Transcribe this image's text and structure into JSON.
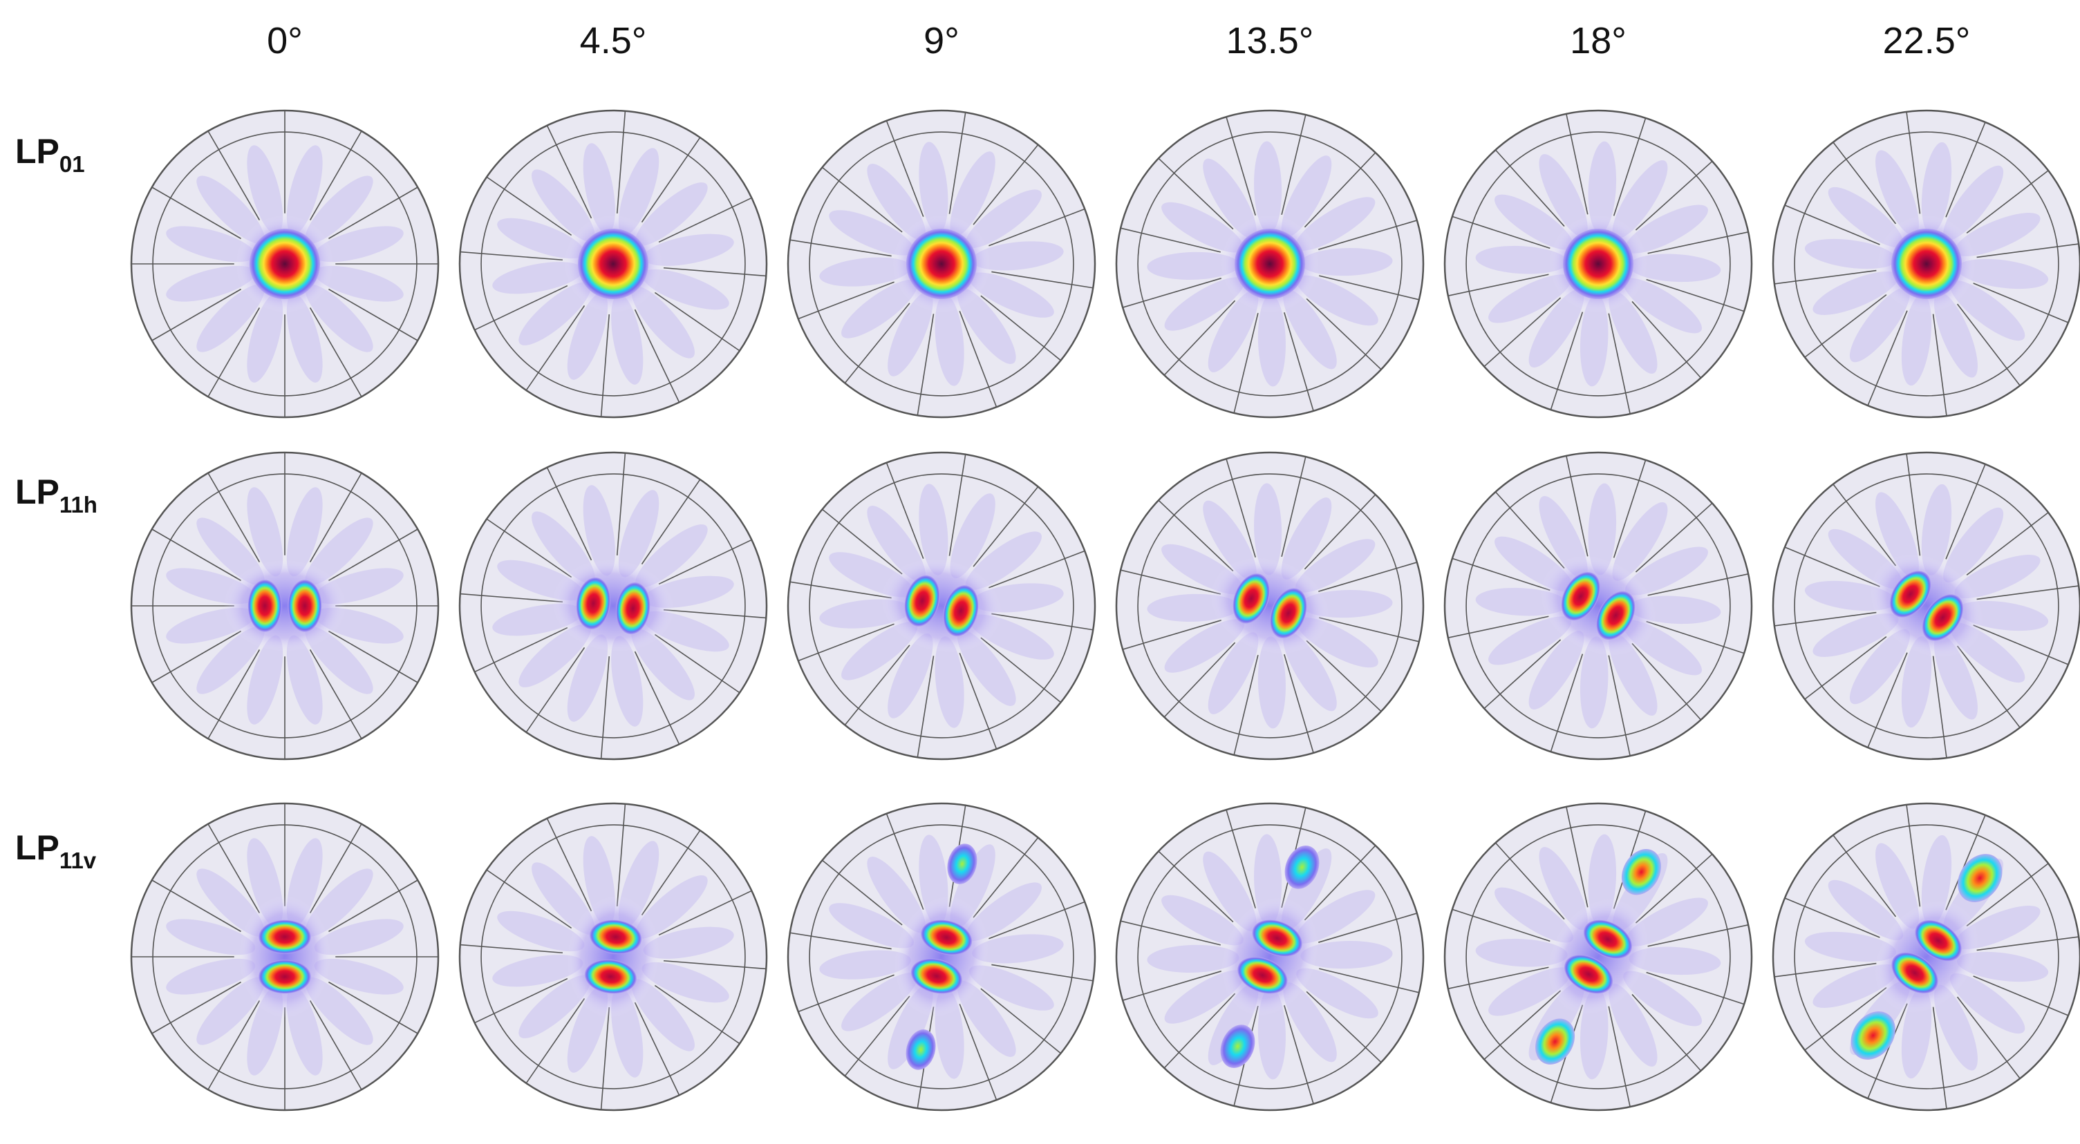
{
  "figure": {
    "column_angles": [
      "0°",
      "4.5°",
      "9°",
      "13.5°",
      "18°",
      "22.5°"
    ],
    "rows": [
      {
        "mode": "LP",
        "subscript": "01",
        "kind": "fundamental",
        "twists_deg": [
          0,
          4.5,
          9,
          13.5,
          18,
          22.5
        ]
      },
      {
        "mode": "LP",
        "subscript": "11h",
        "kind": "horizontal-pair",
        "twists_deg": [
          0,
          4.5,
          9,
          13.5,
          18,
          22.5
        ]
      },
      {
        "mode": "LP",
        "subscript": "11v",
        "kind": "vertical-pair",
        "twists_deg": [
          0,
          4.5,
          9,
          13.5,
          18,
          22.5
        ]
      }
    ]
  },
  "colors": {
    "cladding_fill": "#e9e8f2",
    "outline": "#555555",
    "colormap": [
      "#e8e4ff",
      "#b7a8f2",
      "#7a6cf0",
      "#1ad9f0",
      "#a8f03c",
      "#ffe030",
      "#ff8a1a",
      "#e8102e",
      "#a8063c",
      "#5a0a3a"
    ]
  }
}
